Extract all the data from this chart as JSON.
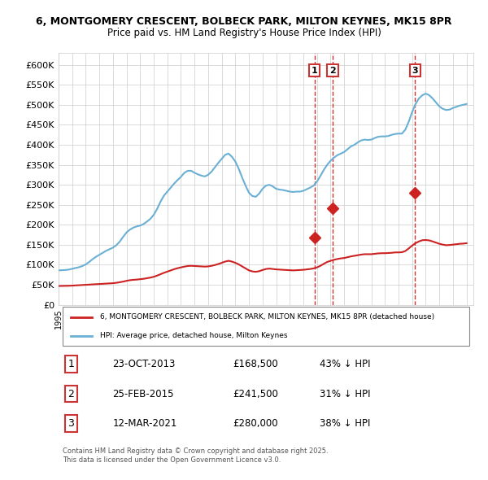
{
  "title_line1": "6, MONTGOMERY CRESCENT, BOLBECK PARK, MILTON KEYNES, MK15 8PR",
  "title_line2": "Price paid vs. HM Land Registry's House Price Index (HPI)",
  "hpi_color": "#6ab0d4",
  "price_color": "#cc2222",
  "vline_color": "#cc3333",
  "ylabel_ticks": [
    "£0",
    "£50K",
    "£100K",
    "£150K",
    "£200K",
    "£250K",
    "£300K",
    "£350K",
    "£400K",
    "£450K",
    "£500K",
    "£550K",
    "£600K"
  ],
  "ytick_vals": [
    0,
    50000,
    100000,
    150000,
    200000,
    250000,
    300000,
    350000,
    400000,
    450000,
    500000,
    550000,
    600000
  ],
  "ylim": [
    0,
    630000
  ],
  "xlim_start": 1995.0,
  "xlim_end": 2025.5,
  "sale1_x": 2013.81,
  "sale1_y": 168500,
  "sale1_label": "1",
  "sale2_x": 2015.15,
  "sale2_y": 241500,
  "sale2_label": "2",
  "sale3_x": 2021.2,
  "sale3_y": 280000,
  "sale3_label": "3",
  "legend_line1": "6, MONTGOMERY CRESCENT, BOLBECK PARK, MILTON KEYNES, MK15 8PR (detached house)",
  "legend_line2": "HPI: Average price, detached house, Milton Keynes",
  "table_data": [
    {
      "num": "1",
      "date": "23-OCT-2013",
      "price": "£168,500",
      "pct": "43% ↓ HPI"
    },
    {
      "num": "2",
      "date": "25-FEB-2015",
      "price": "£241,500",
      "pct": "31% ↓ HPI"
    },
    {
      "num": "3",
      "date": "12-MAR-2021",
      "price": "£280,000",
      "pct": "38% ↓ HPI"
    }
  ],
  "footer": "Contains HM Land Registry data © Crown copyright and database right 2025.\nThis data is licensed under the Open Government Licence v3.0.",
  "hpi_data_x": [
    1995.0,
    1995.25,
    1995.5,
    1995.75,
    1996.0,
    1996.25,
    1996.5,
    1996.75,
    1997.0,
    1997.25,
    1997.5,
    1997.75,
    1998.0,
    1998.25,
    1998.5,
    1998.75,
    1999.0,
    1999.25,
    1999.5,
    1999.75,
    2000.0,
    2000.25,
    2000.5,
    2000.75,
    2001.0,
    2001.25,
    2001.5,
    2001.75,
    2002.0,
    2002.25,
    2002.5,
    2002.75,
    2003.0,
    2003.25,
    2003.5,
    2003.75,
    2004.0,
    2004.25,
    2004.5,
    2004.75,
    2005.0,
    2005.25,
    2005.5,
    2005.75,
    2006.0,
    2006.25,
    2006.5,
    2006.75,
    2007.0,
    2007.25,
    2007.5,
    2007.75,
    2008.0,
    2008.25,
    2008.5,
    2008.75,
    2009.0,
    2009.25,
    2009.5,
    2009.75,
    2010.0,
    2010.25,
    2010.5,
    2010.75,
    2011.0,
    2011.25,
    2011.5,
    2011.75,
    2012.0,
    2012.25,
    2012.5,
    2012.75,
    2013.0,
    2013.25,
    2013.5,
    2013.75,
    2014.0,
    2014.25,
    2014.5,
    2014.75,
    2015.0,
    2015.25,
    2015.5,
    2015.75,
    2016.0,
    2016.25,
    2016.5,
    2016.75,
    2017.0,
    2017.25,
    2017.5,
    2017.75,
    2018.0,
    2018.25,
    2018.5,
    2018.75,
    2019.0,
    2019.25,
    2019.5,
    2019.75,
    2020.0,
    2020.25,
    2020.5,
    2020.75,
    2021.0,
    2021.25,
    2021.5,
    2021.75,
    2022.0,
    2022.25,
    2022.5,
    2022.75,
    2023.0,
    2023.25,
    2023.5,
    2023.75,
    2024.0,
    2024.25,
    2024.5,
    2024.75,
    2025.0
  ],
  "hpi_data_y": [
    86000,
    86500,
    87000,
    88000,
    90000,
    92000,
    94000,
    97000,
    101000,
    107000,
    114000,
    120000,
    125000,
    130000,
    135000,
    139000,
    143000,
    149000,
    158000,
    170000,
    181000,
    188000,
    193000,
    196000,
    198000,
    202000,
    208000,
    215000,
    225000,
    240000,
    258000,
    273000,
    283000,
    293000,
    303000,
    312000,
    320000,
    330000,
    335000,
    335000,
    330000,
    326000,
    323000,
    321000,
    325000,
    333000,
    344000,
    355000,
    365000,
    375000,
    378000,
    370000,
    358000,
    340000,
    318000,
    298000,
    280000,
    272000,
    270000,
    278000,
    290000,
    298000,
    300000,
    296000,
    290000,
    288000,
    287000,
    285000,
    283000,
    282000,
    283000,
    283000,
    285000,
    289000,
    293000,
    298000,
    308000,
    322000,
    337000,
    350000,
    360000,
    368000,
    374000,
    378000,
    382000,
    389000,
    396000,
    400000,
    406000,
    411000,
    413000,
    412000,
    413000,
    417000,
    420000,
    421000,
    421000,
    422000,
    425000,
    427000,
    428000,
    428000,
    438000,
    458000,
    482000,
    502000,
    516000,
    524000,
    528000,
    524000,
    516000,
    506000,
    496000,
    490000,
    487000,
    488000,
    492000,
    495000,
    498000,
    500000,
    502000
  ],
  "price_data_x": [
    1995.0,
    1995.25,
    1995.5,
    1995.75,
    1996.0,
    1996.25,
    1996.5,
    1996.75,
    1997.0,
    1997.25,
    1997.5,
    1997.75,
    1998.0,
    1998.25,
    1998.5,
    1998.75,
    1999.0,
    1999.25,
    1999.5,
    1999.75,
    2000.0,
    2000.25,
    2000.5,
    2000.75,
    2001.0,
    2001.25,
    2001.5,
    2001.75,
    2002.0,
    2002.25,
    2002.5,
    2002.75,
    2003.0,
    2003.25,
    2003.5,
    2003.75,
    2004.0,
    2004.25,
    2004.5,
    2004.75,
    2005.0,
    2005.25,
    2005.5,
    2005.75,
    2006.0,
    2006.25,
    2006.5,
    2006.75,
    2007.0,
    2007.25,
    2007.5,
    2007.75,
    2008.0,
    2008.25,
    2008.5,
    2008.75,
    2009.0,
    2009.25,
    2009.5,
    2009.75,
    2010.0,
    2010.25,
    2010.5,
    2010.75,
    2011.0,
    2011.25,
    2011.5,
    2011.75,
    2012.0,
    2012.25,
    2012.5,
    2012.75,
    2013.0,
    2013.25,
    2013.5,
    2013.75,
    2014.0,
    2014.25,
    2014.5,
    2014.75,
    2015.0,
    2015.25,
    2015.5,
    2015.75,
    2016.0,
    2016.25,
    2016.5,
    2016.75,
    2017.0,
    2017.25,
    2017.5,
    2017.75,
    2018.0,
    2018.25,
    2018.5,
    2018.75,
    2019.0,
    2019.25,
    2019.5,
    2019.75,
    2020.0,
    2020.25,
    2020.5,
    2020.75,
    2021.0,
    2021.25,
    2021.5,
    2021.75,
    2022.0,
    2022.25,
    2022.5,
    2022.75,
    2023.0,
    2023.25,
    2023.5,
    2023.75,
    2024.0,
    2024.25,
    2024.5,
    2024.75,
    2025.0
  ],
  "price_data_y": [
    47000,
    47200,
    47400,
    47600,
    48000,
    48500,
    49000,
    49500,
    50000,
    50500,
    51000,
    51500,
    52000,
    52500,
    53000,
    53500,
    54000,
    55000,
    56500,
    58000,
    60000,
    61500,
    62500,
    63000,
    64000,
    65000,
    66500,
    68000,
    70000,
    73000,
    76500,
    80000,
    83000,
    86000,
    89000,
    91500,
    93500,
    95500,
    97000,
    97500,
    97000,
    96500,
    96000,
    95500,
    96000,
    97500,
    99500,
    102000,
    105000,
    108000,
    110000,
    108000,
    105000,
    101000,
    96000,
    91000,
    86000,
    83500,
    82500,
    84000,
    87000,
    89500,
    90500,
    89500,
    88500,
    88000,
    87500,
    87000,
    86500,
    86000,
    86500,
    87000,
    87500,
    88500,
    89500,
    91000,
    93500,
    97500,
    102500,
    107000,
    110000,
    112500,
    114500,
    116000,
    117000,
    119000,
    121000,
    122500,
    124000,
    125500,
    126500,
    126500,
    126500,
    127500,
    128500,
    129000,
    129000,
    129500,
    130000,
    131000,
    131000,
    131500,
    134500,
    141000,
    148000,
    154000,
    158500,
    161500,
    162000,
    161000,
    158500,
    155500,
    152500,
    150500,
    149000,
    149500,
    150500,
    151500,
    152500,
    153000,
    154000
  ]
}
